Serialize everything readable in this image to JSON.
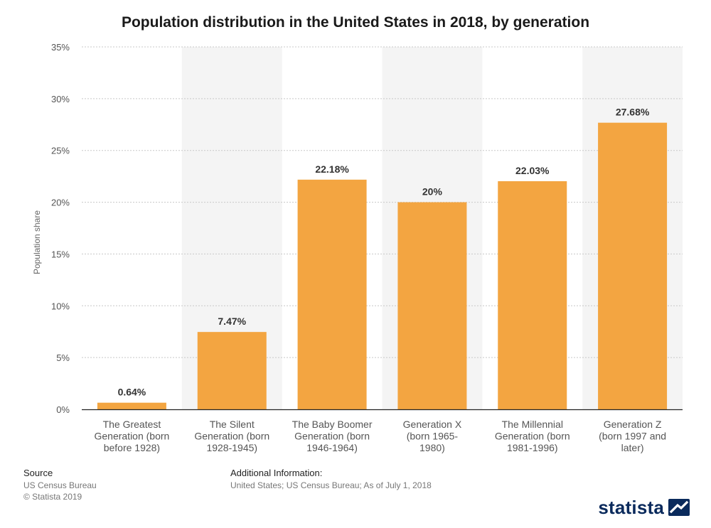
{
  "chart_data": {
    "type": "bar",
    "title": "Population distribution in the United States in 2018, by generation",
    "xlabel": "",
    "ylabel": "Population share",
    "categories": [
      [
        "The Greatest",
        "Generation (born",
        "before 1928)"
      ],
      [
        "The Silent",
        "Generation (born",
        "1928-1945)"
      ],
      [
        "The Baby Boomer",
        "Generation (born",
        "1946-1964)"
      ],
      [
        "Generation X",
        "(born 1965-",
        "1980)"
      ],
      [
        "The Millennial",
        "Generation (born",
        "1981-1996)"
      ],
      [
        "Generation Z",
        "(born 1997 and",
        "later)"
      ]
    ],
    "values": [
      0.64,
      7.47,
      22.18,
      20,
      22.03,
      27.68
    ],
    "value_labels": [
      "0.64%",
      "7.47%",
      "22.18%",
      "20%",
      "22.03%",
      "27.68%"
    ],
    "ylim": [
      0,
      35
    ],
    "yticks": [
      0,
      5,
      10,
      15,
      20,
      25,
      30,
      35
    ],
    "ytick_labels": [
      "0%",
      "5%",
      "10%",
      "15%",
      "20%",
      "25%",
      "30%",
      "35%"
    ],
    "grid": true,
    "legend": "none"
  },
  "colors": {
    "bar": "#f3a541",
    "band": "#f4f4f4",
    "grid": "#c8c8c8",
    "brand": "#0a2a5c"
  },
  "source": {
    "heading": "Source",
    "line1": "US Census Bureau",
    "line2": "© Statista 2019"
  },
  "additional": {
    "heading": "Additional Information:",
    "text": "United States; US Census Bureau; As of July 1, 2018"
  },
  "brand": {
    "name": "statista",
    "icon": "statista-logo-icon"
  }
}
